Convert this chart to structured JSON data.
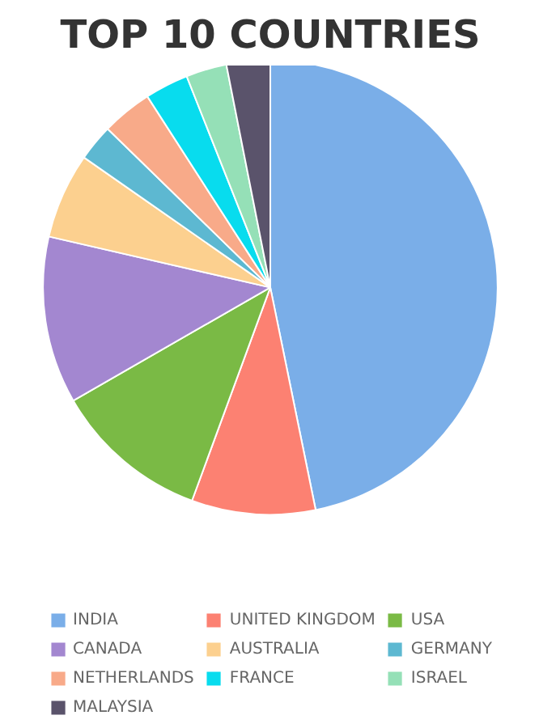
{
  "chart_data": {
    "type": "pie",
    "title": "TOP 10 COUNTRIES",
    "categories": [
      "INDIA",
      "UNITED KINGDOM",
      "USA",
      "CANADA",
      "AUSTRALIA",
      "GERMANY",
      "NETHERLANDS",
      "FRANCE",
      "ISRAEL",
      "MALAYSIA"
    ],
    "values": [
      46.8,
      8.8,
      11.1,
      11.9,
      6.1,
      2.6,
      3.6,
      3.1,
      2.9,
      3.1
    ],
    "colors": [
      "#7aaee8",
      "#fc8172",
      "#7aba45",
      "#a387d0",
      "#fcd08f",
      "#5db8d1",
      "#f8aa89",
      "#08dcee",
      "#95e0b7",
      "#5a536b"
    ],
    "legend": "bottom"
  }
}
